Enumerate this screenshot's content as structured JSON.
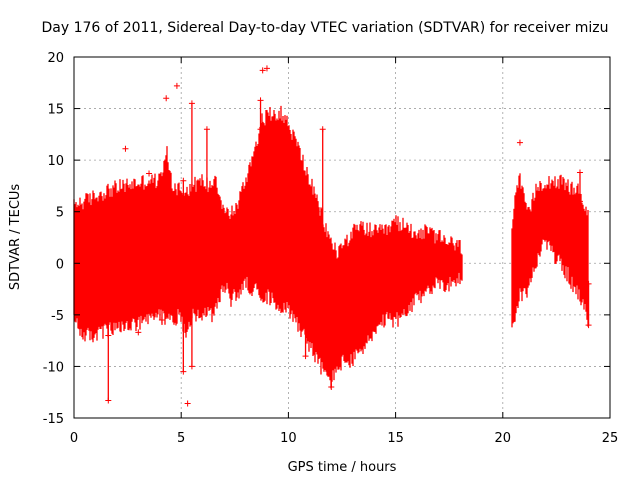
{
  "chart_data": {
    "type": "scatter",
    "title": "Day 176 of 2011, Sidereal Day-to-day VTEC variation (SDTVAR) for receiver mizu",
    "xlabel": "GPS time / hours",
    "ylabel": "SDTVAR / TECUs",
    "xlim": [
      0,
      25
    ],
    "ylim": [
      -15,
      20
    ],
    "xticks": [
      0,
      5,
      10,
      15,
      20,
      25
    ],
    "yticks": [
      -15,
      -10,
      -5,
      0,
      5,
      10,
      15,
      20
    ],
    "grid": true,
    "series_color": "#ff0000",
    "envelope": {
      "x": [
        0.0,
        0.1,
        0.5,
        1.0,
        1.5,
        2.0,
        2.5,
        3.0,
        3.5,
        4.0,
        4.3,
        4.6,
        5.0,
        5.2,
        5.5,
        6.0,
        6.3,
        6.6,
        7.0,
        7.3,
        7.6,
        8.0,
        8.4,
        8.8,
        9.2,
        9.6,
        10.0,
        10.5,
        11.0,
        11.5,
        11.8,
        12.0,
        12.3,
        12.6,
        13.0,
        13.5,
        14.0,
        14.5,
        15.0,
        15.5,
        16.0,
        16.5,
        17.0,
        17.5,
        18.1
      ],
      "max": [
        5.5,
        5.8,
        6.0,
        6.5,
        7.0,
        7.3,
        7.6,
        7.8,
        8.0,
        8.0,
        11.0,
        7.5,
        7.2,
        7.0,
        7.5,
        8.0,
        7.5,
        8.5,
        5.0,
        4.8,
        5.5,
        8.0,
        11.0,
        14.0,
        14.5,
        14.7,
        13.5,
        11.0,
        8.0,
        5.0,
        3.0,
        2.0,
        1.0,
        2.0,
        3.0,
        3.5,
        3.0,
        3.0,
        4.0,
        3.5,
        3.0,
        3.0,
        2.5,
        2.0,
        1.5
      ],
      "min": [
        -5.0,
        -6.0,
        -7.0,
        -7.0,
        -6.5,
        -6.5,
        -6.0,
        -6.0,
        -5.5,
        -5.0,
        -5.5,
        -5.5,
        -5.0,
        -7.0,
        -5.0,
        -5.0,
        -5.0,
        -4.8,
        -2.0,
        -3.5,
        -3.0,
        -2.0,
        -2.5,
        -3.0,
        -3.5,
        -4.0,
        -4.5,
        -6.0,
        -8.0,
        -10.0,
        -11.0,
        -11.5,
        -10.0,
        -9.5,
        -9.5,
        -8.0,
        -7.0,
        -5.5,
        -5.5,
        -5.0,
        -3.5,
        -2.5,
        -2.0,
        -2.0,
        -1.5
      ]
    },
    "envelope_late": {
      "x": [
        20.4,
        20.6,
        20.8,
        21.0,
        21.2,
        21.6,
        22.0,
        22.5,
        23.0,
        23.5,
        24.0
      ],
      "max": [
        3.5,
        7.0,
        8.0,
        6.0,
        4.5,
        7.5,
        8.0,
        8.0,
        7.5,
        7.0,
        5.0
      ],
      "min": [
        -6.0,
        -5.0,
        -3.0,
        -3.0,
        -2.5,
        0.5,
        2.0,
        0.5,
        -1.0,
        -3.0,
        -5.5
      ]
    },
    "outliers": [
      {
        "x": 2.4,
        "y": 11.1
      },
      {
        "x": 3.5,
        "y": 8.7
      },
      {
        "x": 3.0,
        "y": -6.7
      },
      {
        "x": 4.3,
        "y": 16.0
      },
      {
        "x": 4.8,
        "y": 17.2
      },
      {
        "x": 5.3,
        "y": -13.6
      },
      {
        "x": 8.8,
        "y": 18.7
      },
      {
        "x": 9.0,
        "y": 18.9
      },
      {
        "x": 20.8,
        "y": 11.7
      },
      {
        "x": 1.6,
        "y": -7.0
      },
      {
        "x": 4.1,
        "y": -5.5
      }
    ],
    "spikes": [
      {
        "x": 1.6,
        "y1": -13.3,
        "y2": 5.0
      },
      {
        "x": 5.1,
        "y1": -10.5,
        "y2": 8.0
      },
      {
        "x": 5.5,
        "y1": -10.0,
        "y2": 15.5
      },
      {
        "x": 6.2,
        "y1": 13.0,
        "y2": 5.0
      },
      {
        "x": 8.7,
        "y1": 15.8,
        "y2": 13.0
      },
      {
        "x": 11.6,
        "y1": 13.0,
        "y2": 3.0
      },
      {
        "x": 10.8,
        "y1": -9.0,
        "y2": -4.0
      },
      {
        "x": 12.0,
        "y1": -12.0,
        "y2": -10.0
      },
      {
        "x": 24.0,
        "y1": -6.0,
        "y2": -2.0
      },
      {
        "x": 23.6,
        "y1": 8.8,
        "y2": 6.0
      }
    ]
  }
}
